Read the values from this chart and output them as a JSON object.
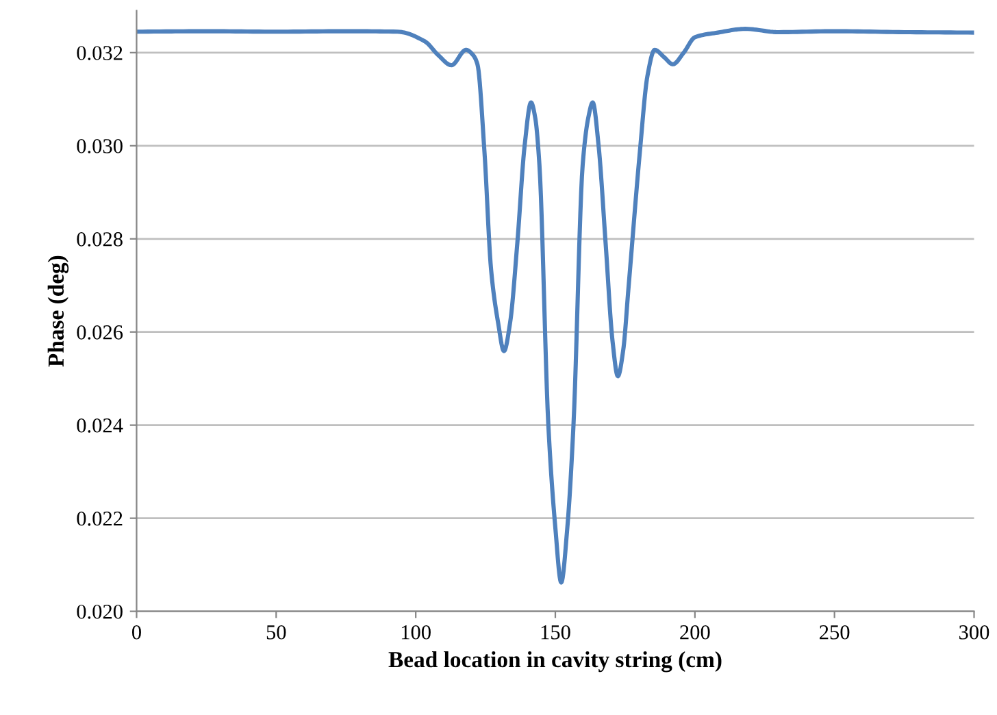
{
  "chart_data": {
    "type": "line",
    "xlabel": "Bead location in cavity string (cm)",
    "ylabel": "Phase (deg)",
    "series": [
      {
        "color": "#4f81bd",
        "x": [
          0,
          25,
          50,
          75,
          93.4,
          103.3,
          108,
          112.8,
          118.0,
          120.5,
          122.1,
          124.6,
          127.0,
          129.5,
          131.6,
          133.8,
          136.4,
          139,
          141.3,
          142.8,
          144.3,
          147.5,
          150,
          152.1,
          154.3,
          156.5,
          159.8,
          161.8,
          163.4,
          165.5,
          168.0,
          170.5,
          172.4,
          174.3,
          176.2,
          180.3,
          183,
          185.6,
          189,
          192.1,
          196,
          200.0,
          208.2,
          218.0,
          230,
          250,
          275,
          300
        ],
        "values": [
          0.03245,
          0.03246,
          0.03245,
          0.03246,
          0.03245,
          0.03224,
          0.03195,
          0.03173,
          0.03206,
          0.03195,
          0.03175,
          0.02988,
          0.02733,
          0.0262,
          0.02559,
          0.0262,
          0.02792,
          0.03,
          0.03093,
          0.0306,
          0.02959,
          0.024,
          0.0218,
          0.02062,
          0.0218,
          0.024,
          0.02959,
          0.0306,
          0.03093,
          0.03,
          0.02792,
          0.0258,
          0.02505,
          0.0256,
          0.02694,
          0.02988,
          0.0315,
          0.03206,
          0.0319,
          0.03175,
          0.032,
          0.03233,
          0.03243,
          0.03251,
          0.03244,
          0.03246,
          0.03244,
          0.03243
        ]
      }
    ],
    "xlim": [
      0,
      300
    ],
    "xticks": [
      0,
      50,
      100,
      150,
      200,
      250,
      300
    ],
    "ylim": [
      0.02,
      0.0329
    ],
    "yticks": [
      {
        "value": 0.02,
        "label": "0.020"
      },
      {
        "value": 0.022,
        "label": "0.022"
      },
      {
        "value": 0.024,
        "label": "0.024"
      },
      {
        "value": 0.026,
        "label": "0.026"
      },
      {
        "value": 0.028,
        "label": "0.028"
      },
      {
        "value": 0.03,
        "label": "0.030"
      },
      {
        "value": 0.032,
        "label": "0.032"
      }
    ],
    "grid": "y",
    "marker": "none",
    "line_style": "solid"
  }
}
